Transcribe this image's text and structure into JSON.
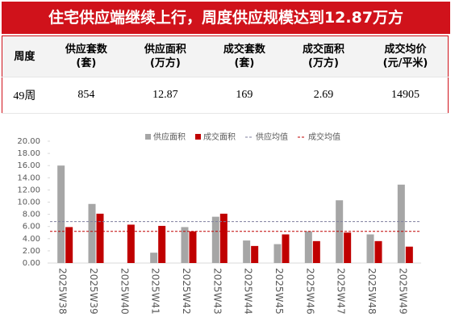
{
  "header": {
    "title": "住宅供应端继续上行，周度供应规模达到12.87万方"
  },
  "table": {
    "columns": [
      "周度",
      "供应套数\n(套)",
      "供应面积\n(万方)",
      "成交套数\n(套)",
      "成交面积\n(万方)",
      "成交均价\n(元/平米)"
    ],
    "rows": [
      [
        "49周",
        "854",
        "12.87",
        "169",
        "2.69",
        "14905"
      ]
    ]
  },
  "chart_data": {
    "type": "bar",
    "categories": [
      "2025W38",
      "2025W39",
      "2025W40",
      "2025W41",
      "2025W42",
      "2025W43",
      "2025W44",
      "2025W45",
      "2025W46",
      "2025W47",
      "2025W48",
      "2025W49"
    ],
    "series": [
      {
        "name": "供应面积",
        "color": "#a6a6a6",
        "values": [
          16.0,
          9.7,
          0,
          1.7,
          5.9,
          7.6,
          3.7,
          3.1,
          5.2,
          10.3,
          4.7,
          12.87
        ]
      },
      {
        "name": "成交面积",
        "color": "#c00000",
        "values": [
          5.9,
          8.1,
          6.3,
          6.1,
          5.2,
          8.1,
          2.8,
          4.7,
          3.6,
          5.0,
          3.6,
          2.69
        ]
      }
    ],
    "average_lines": [
      {
        "name": "供应均值",
        "color": "#7f7f9f",
        "value": 6.8
      },
      {
        "name": "成交均值",
        "color": "#c00000",
        "value": 5.2
      }
    ],
    "ylim": [
      0,
      20
    ],
    "yticks": [
      {
        "value": 0,
        "label": "0.00"
      },
      {
        "value": 2,
        "label": "2.00"
      },
      {
        "value": 4,
        "label": "4.00"
      },
      {
        "value": 6,
        "label": "6.00"
      },
      {
        "value": 8,
        "label": "8.00"
      },
      {
        "value": 10,
        "label": "10.00"
      },
      {
        "value": 12,
        "label": "12.00"
      },
      {
        "value": 14,
        "label": "14.00"
      },
      {
        "value": 16,
        "label": "16.00"
      },
      {
        "value": 18,
        "label": "18.00"
      },
      {
        "value": 20,
        "label": "20.00"
      }
    ]
  }
}
